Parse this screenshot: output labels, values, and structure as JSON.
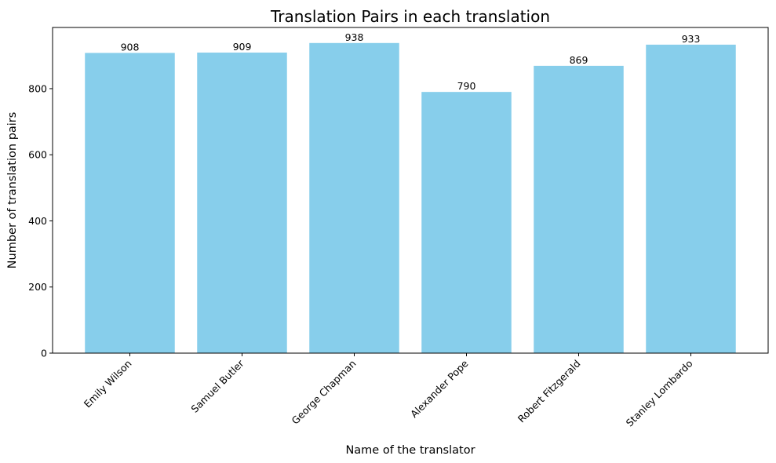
{
  "chart_data": {
    "type": "bar",
    "title": "Translation Pairs in each translation",
    "xlabel": "Name of the translator",
    "ylabel": "Number of translation pairs",
    "categories": [
      "Emily Wilson",
      "Samuel Butler",
      "George Chapman",
      "Alexander Pope",
      "Robert Fitzgerald",
      "Stanley Lombardo"
    ],
    "values": [
      908,
      909,
      938,
      790,
      869,
      933
    ],
    "ylim": [
      0,
      985
    ],
    "yticks": [
      0,
      200,
      400,
      600,
      800
    ],
    "bar_color": "#87CEEB",
    "grid": false,
    "legend": "none"
  }
}
